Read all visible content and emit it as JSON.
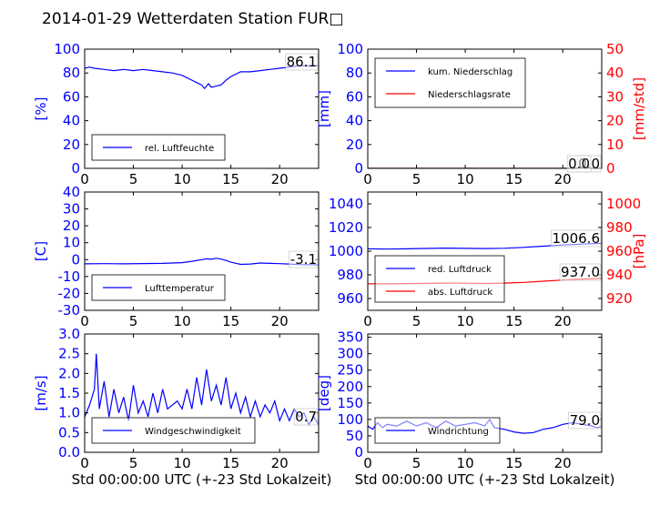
{
  "title": "2014-01-29 Wetterdaten Station FUR□",
  "colors": {
    "primary": "#0000ff",
    "secondary": "#ff0000",
    "text": "#000000"
  },
  "chart_data": [
    {
      "id": "humidity",
      "type": "line",
      "ylabel": "[%]",
      "ylim": [
        0,
        100
      ],
      "yticks": [
        0,
        20,
        40,
        60,
        80,
        100
      ],
      "xlim": [
        0,
        24
      ],
      "xticks": [
        0,
        5,
        10,
        15,
        20
      ],
      "xlabel": "",
      "value_label": "86.1",
      "legend": [
        {
          "label": "rel. Luftfeuchte",
          "color": "#0000ff"
        }
      ],
      "series": [
        {
          "name": "rel. Luftfeuchte",
          "axis": "left",
          "color": "#0000ff",
          "x": [
            0,
            0.5,
            1,
            2,
            3,
            4,
            5,
            6,
            7,
            8,
            9,
            10,
            10.5,
            11,
            11.5,
            12,
            12.3,
            12.7,
            13,
            13.5,
            14,
            14.5,
            15,
            15.5,
            16,
            17,
            18,
            19,
            20,
            21,
            22,
            23,
            24
          ],
          "y": [
            84,
            85,
            84,
            83,
            82,
            83,
            82,
            83,
            82,
            81,
            80,
            78,
            76,
            74,
            72,
            70,
            67,
            71,
            68,
            69,
            70,
            74,
            77,
            79,
            81,
            81,
            82,
            83,
            84,
            85,
            86,
            86,
            86.1
          ]
        }
      ]
    },
    {
      "id": "precipitation",
      "type": "line",
      "ylabel": "[mm]",
      "ylim": [
        0,
        100
      ],
      "yticks": [
        0,
        20,
        40,
        60,
        80,
        100
      ],
      "y2label": "[mm/std]",
      "y2lim": [
        0,
        50
      ],
      "y2ticks": [
        0,
        10,
        20,
        30,
        40,
        50
      ],
      "xlim": [
        0,
        24
      ],
      "xticks": [
        0,
        5,
        10,
        15,
        20
      ],
      "xlabel": "",
      "value_labels": [
        "0.0",
        "0.0"
      ],
      "legend": [
        {
          "label": "kum. Niederschlag",
          "color": "#0000ff"
        },
        {
          "label": "Niederschlagsrate",
          "color": "#ff0000"
        }
      ],
      "series": [
        {
          "name": "kum. Niederschlag",
          "axis": "left",
          "color": "#0000ff",
          "x": [
            0,
            24
          ],
          "y": [
            0,
            0
          ]
        },
        {
          "name": "Niederschlagsrate",
          "axis": "right",
          "color": "#ff0000",
          "x": [
            0,
            24
          ],
          "y": [
            0,
            0
          ]
        }
      ]
    },
    {
      "id": "temperature",
      "type": "line",
      "ylabel": "[C]",
      "ylim": [
        -30,
        40
      ],
      "yticks": [
        -30,
        -20,
        -10,
        0,
        10,
        20,
        30,
        40
      ],
      "xlim": [
        0,
        24
      ],
      "xticks": [
        0,
        5,
        10,
        15,
        20
      ],
      "xlabel": "",
      "value_label": "-3.1",
      "legend": [
        {
          "label": "Lufttemperatur",
          "color": "#0000ff"
        }
      ],
      "series": [
        {
          "name": "Lufttemperatur",
          "axis": "left",
          "color": "#0000ff",
          "x": [
            0,
            2,
            4,
            6,
            8,
            10,
            11,
            12,
            12.5,
            13,
            13.5,
            14,
            14.5,
            15,
            16,
            17,
            18,
            19,
            20,
            21,
            22,
            23,
            24
          ],
          "y": [
            -2.5,
            -2.4,
            -2.5,
            -2.3,
            -2.2,
            -1.8,
            -1,
            0,
            0.5,
            0.2,
            0.8,
            0.3,
            -0.5,
            -1.5,
            -2.8,
            -2.6,
            -2,
            -2.2,
            -2.4,
            -2.6,
            -2.9,
            -3,
            -3.1
          ]
        }
      ]
    },
    {
      "id": "pressure",
      "type": "line",
      "ylabel": "",
      "ylim": [
        950,
        1050
      ],
      "yticks": [
        960,
        980,
        1000,
        1020,
        1040
      ],
      "y2label": "[hPa]",
      "y2lim": [
        910,
        1010
      ],
      "y2ticks": [
        920,
        940,
        960,
        980,
        1000
      ],
      "xlim": [
        0,
        24
      ],
      "xticks": [
        0,
        5,
        10,
        15,
        20
      ],
      "xlabel": "",
      "value_labels": [
        "1006.6",
        "937.0"
      ],
      "legend": [
        {
          "label": "red. Luftdruck",
          "color": "#0000ff"
        },
        {
          "label": "abs. Luftdruck",
          "color": "#ff0000"
        }
      ],
      "series": [
        {
          "name": "red. Luftdruck",
          "axis": "left",
          "color": "#0000ff",
          "x": [
            0,
            2,
            4,
            6,
            8,
            10,
            12,
            14,
            16,
            18,
            20,
            22,
            24
          ],
          "y": [
            1002,
            1001.8,
            1002,
            1002.3,
            1002.6,
            1002.4,
            1002.2,
            1002.5,
            1003.2,
            1004.2,
            1005.2,
            1006,
            1006.6
          ]
        },
        {
          "name": "abs. Luftdruck",
          "axis": "right",
          "color": "#ff0000",
          "x": [
            0,
            2,
            4,
            6,
            8,
            10,
            12,
            14,
            16,
            18,
            20,
            22,
            24
          ],
          "y": [
            932.5,
            932.4,
            932.6,
            932.8,
            933,
            932.9,
            932.7,
            933,
            933.6,
            934.6,
            935.6,
            936.5,
            937
          ]
        }
      ]
    },
    {
      "id": "wind-speed",
      "type": "line",
      "ylabel": "[m/s]",
      "ylim": [
        0,
        3
      ],
      "yticks": [
        0.0,
        0.5,
        1.0,
        1.5,
        2.0,
        2.5,
        3.0
      ],
      "xlim": [
        0,
        24
      ],
      "xticks": [
        0,
        5,
        10,
        15,
        20
      ],
      "xlabel": "Std 00:00:00 UTC (+-23 Std Lokalzeit)",
      "value_label": "0.7",
      "legend": [
        {
          "label": "Windgeschwindigkeit",
          "color": "#0000ff"
        }
      ],
      "series": [
        {
          "name": "Windgeschwindigkeit",
          "axis": "left",
          "color": "#0000ff",
          "x": [
            0,
            0.5,
            1,
            1.2,
            1.5,
            2,
            2.5,
            3,
            3.5,
            4,
            4.5,
            5,
            5.5,
            6,
            6.5,
            7,
            7.5,
            8,
            8.5,
            9,
            9.5,
            10,
            10.5,
            11,
            11.5,
            12,
            12.5,
            13,
            13.5,
            14,
            14.5,
            15,
            15.5,
            16,
            16.5,
            17,
            17.5,
            18,
            18.5,
            19,
            19.5,
            20,
            20.5,
            21,
            21.5,
            22,
            22.5,
            23,
            23.5,
            24
          ],
          "y": [
            0.9,
            1.2,
            1.6,
            2.5,
            1.1,
            1.8,
            0.9,
            1.6,
            1.0,
            1.4,
            0.8,
            1.7,
            1.0,
            1.3,
            0.9,
            1.5,
            1.0,
            1.6,
            1.1,
            1.2,
            1.3,
            1.1,
            1.6,
            1.1,
            1.9,
            1.2,
            2.1,
            1.3,
            1.7,
            1.2,
            1.9,
            1.1,
            1.5,
            1.0,
            1.4,
            0.9,
            1.3,
            0.9,
            1.2,
            1.0,
            1.3,
            0.8,
            1.1,
            0.8,
            1.1,
            0.9,
            1.0,
            0.7,
            0.9,
            0.7
          ]
        }
      ]
    },
    {
      "id": "wind-direction",
      "type": "line",
      "ylabel": "[deg]",
      "ylim": [
        0,
        360
      ],
      "yticks": [
        0,
        50,
        100,
        150,
        200,
        250,
        300,
        350
      ],
      "xlim": [
        0,
        24
      ],
      "xticks": [
        0,
        5,
        10,
        15,
        20
      ],
      "xlabel": "Std 00:00:00 UTC (+-23 Std Lokalzeit)",
      "value_label": "79.0",
      "legend": [
        {
          "label": "Windrichtung",
          "color": "#0000ff"
        }
      ],
      "series": [
        {
          "name": "Windrichtung",
          "axis": "left",
          "color": "#0000ff",
          "x": [
            0,
            0.5,
            1,
            1.5,
            2,
            3,
            4,
            5,
            6,
            7,
            8,
            9,
            10,
            11,
            12,
            12.5,
            13,
            14,
            15,
            16,
            17,
            18,
            19,
            20,
            21,
            22,
            23,
            23.5,
            24
          ],
          "y": [
            80,
            70,
            90,
            75,
            85,
            80,
            95,
            80,
            90,
            75,
            95,
            80,
            85,
            90,
            80,
            100,
            75,
            70,
            62,
            58,
            60,
            70,
            75,
            85,
            90,
            85,
            80,
            75,
            79
          ]
        }
      ]
    }
  ]
}
